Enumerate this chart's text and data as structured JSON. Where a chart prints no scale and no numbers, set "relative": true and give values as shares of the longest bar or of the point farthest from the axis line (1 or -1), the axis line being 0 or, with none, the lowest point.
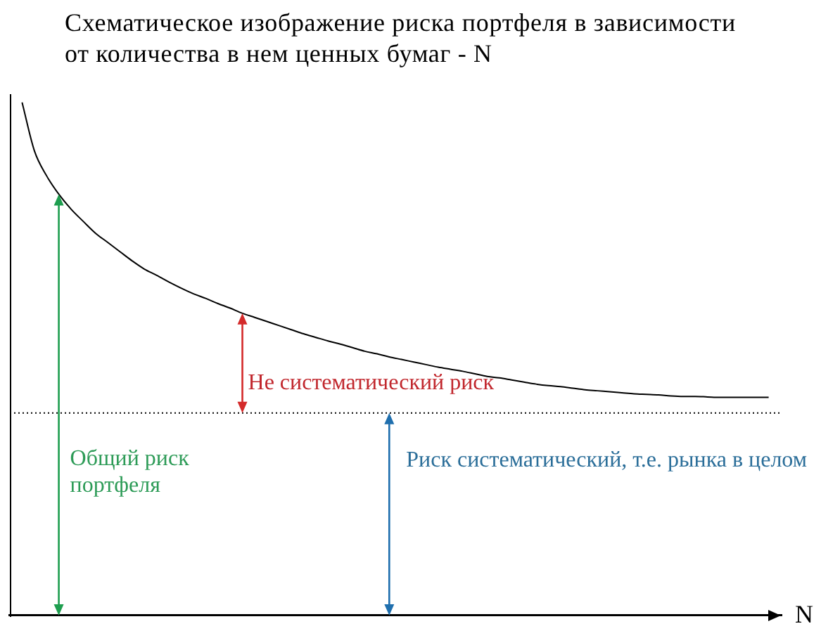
{
  "chart_data": {
    "type": "line",
    "title": "Схематическое изображение риска портфеля в зависимости от количества в нем ценных бумаг - N",
    "xlabel": "N",
    "relative": true,
    "categories": [
      null,
      null,
      null,
      null,
      null,
      null,
      null,
      null,
      null,
      null,
      null,
      null,
      null,
      null,
      null,
      null,
      null,
      null,
      null,
      null,
      null,
      null,
      null,
      null,
      null,
      null,
      null,
      null,
      null,
      null,
      null,
      null,
      null,
      null,
      null,
      null,
      null,
      null,
      null,
      null,
      null,
      null,
      null,
      null,
      null,
      null,
      null,
      null,
      null,
      null,
      null,
      null,
      null,
      null,
      null,
      null,
      null,
      null,
      null,
      null,
      null,
      null,
      null,
      null
    ],
    "values": [
      null,
      1,
      0.906,
      0.857,
      0.821,
      0.792,
      0.768,
      0.745,
      0.727,
      0.709,
      0.691,
      0.675,
      0.663,
      0.65,
      0.638,
      0.627,
      0.618,
      0.608,
      0.599,
      0.589,
      0.581,
      0.573,
      0.565,
      0.557,
      0.549,
      0.542,
      0.535,
      0.529,
      0.522,
      0.515,
      0.51,
      0.504,
      0.499,
      0.494,
      0.489,
      0.484,
      0.48,
      0.476,
      0.471,
      0.466,
      0.463,
      0.459,
      0.455,
      0.451,
      0.448,
      0.446,
      0.443,
      0.44,
      0.438,
      0.436,
      0.434,
      0.432,
      0.431,
      0.43,
      0.428,
      0.427,
      0.427,
      0.426,
      0.425,
      0.425,
      0.425,
      0.425,
      0.425,
      null
    ],
    "color": "#000000",
    "marker": "none",
    "tick_labels": false,
    "ref_lines": [
      {
        "axis": "y",
        "value": 0.396,
        "color": "#000000",
        "line_style": "dotted"
      }
    ],
    "annotations": [
      "Не систематический риск",
      "Общий риск портфеля",
      "Риск систематический, т.е. рынка в целом"
    ]
  }
}
